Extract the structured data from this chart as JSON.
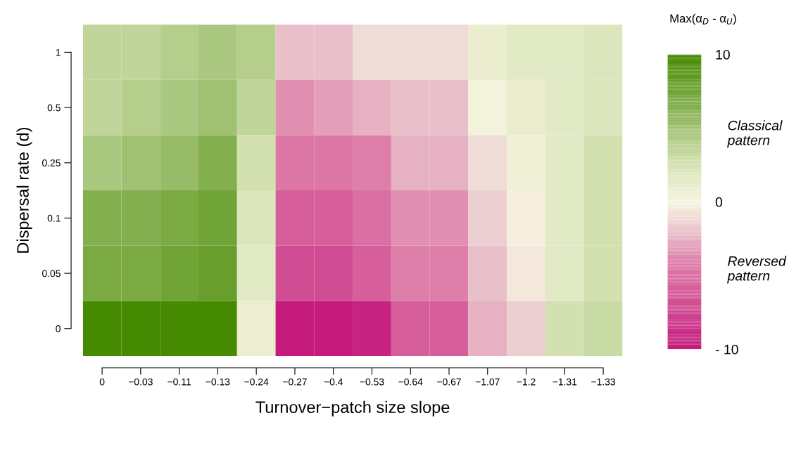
{
  "chart_data": {
    "type": "heatmap",
    "xlabel": "Turnover−patch size slope",
    "ylabel": "Dispersal rate (d)",
    "clabel": "Max(α$_{D}$ - α$_{U}$)",
    "categories": [
      "0",
      "−0.03",
      "−0.11",
      "−0.13",
      "−0.24",
      "−0.27",
      "−0.4",
      "−0.53",
      "−0.64",
      "−0.67",
      "−1.07",
      "−1.2",
      "−1.31",
      "−1.33"
    ],
    "y_categories": [
      "1",
      "0.5",
      "0.25",
      "0.1",
      "0.05",
      "0"
    ],
    "cells": [
      [
        3.5,
        3.5,
        4,
        4.5,
        4,
        -2,
        -2,
        -1,
        -1,
        -1,
        1,
        1.5,
        1.5,
        2
      ],
      [
        3.5,
        4,
        4.5,
        5,
        3.5,
        -3.5,
        -3,
        -2.5,
        -2,
        -2,
        0.3,
        1,
        1.5,
        2
      ],
      [
        4.5,
        5,
        5.5,
        6.5,
        2.5,
        -4.5,
        -4.5,
        -4,
        -2.5,
        -2.5,
        -1,
        0.5,
        1.5,
        2.5
      ],
      [
        6.5,
        6.5,
        7,
        7.5,
        2,
        -6,
        -6,
        -5,
        -3.5,
        -3.5,
        -1.5,
        -0.2,
        1.5,
        2.5
      ],
      [
        7,
        7,
        7.5,
        8,
        1.5,
        -7,
        -7,
        -6,
        -4,
        -4,
        -2,
        -0.5,
        1.5,
        2.5
      ],
      [
        10,
        10,
        10,
        10,
        0.8,
        -10,
        -10,
        -9.5,
        -6,
        -6,
        -2.5,
        -1.5,
        2.5,
        3
      ]
    ],
    "clim": [
      -10,
      10
    ],
    "cticks": [
      {
        "value": -10,
        "label": "- 10"
      },
      0,
      10
    ],
    "annotations": [
      "Classical pattern",
      "Reversed pattern"
    ],
    "grid": false
  }
}
